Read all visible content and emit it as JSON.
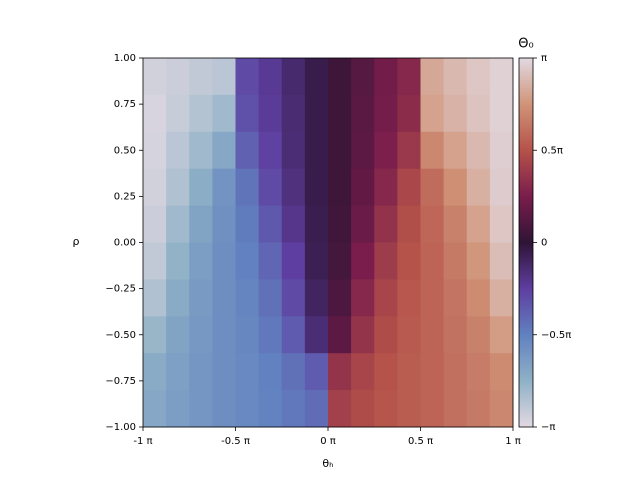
{
  "chart_data": {
    "type": "heatmap",
    "xlabel": "θₕ",
    "ylabel": "ρ",
    "colorbar_label": "Θ₀",
    "x": [
      -0.9375,
      -0.8125,
      -0.6875,
      -0.5625,
      -0.4375,
      -0.3125,
      -0.1875,
      -0.0625,
      0.0625,
      0.1875,
      0.3125,
      0.4375,
      0.5625,
      0.6875,
      0.8125,
      0.9375
    ],
    "y": [
      0.9,
      0.7,
      0.5,
      0.3,
      0.1,
      -0.1,
      -0.3,
      -0.5,
      -0.7,
      -0.9
    ],
    "z": [
      [
        -0.95,
        -0.93,
        -0.9,
        -0.88,
        -0.3,
        -0.22,
        -0.13,
        -0.05,
        0.05,
        0.13,
        0.22,
        0.3,
        0.82,
        0.88,
        0.93,
        0.97
      ],
      [
        -0.97,
        -0.92,
        -0.86,
        -0.8,
        -0.32,
        -0.23,
        -0.14,
        -0.05,
        0.05,
        0.14,
        0.23,
        0.32,
        0.8,
        0.86,
        0.92,
        0.97
      ],
      [
        -0.96,
        -0.88,
        -0.8,
        -0.7,
        -0.38,
        -0.26,
        -0.15,
        -0.05,
        0.05,
        0.15,
        0.26,
        0.38,
        0.7,
        0.8,
        0.88,
        0.96
      ],
      [
        -0.95,
        -0.85,
        -0.73,
        -0.6,
        -0.45,
        -0.3,
        -0.17,
        -0.05,
        0.05,
        0.17,
        0.3,
        0.45,
        0.6,
        0.73,
        0.85,
        0.95
      ],
      [
        -0.93,
        -0.8,
        -0.68,
        -0.58,
        -0.48,
        -0.35,
        -0.2,
        -0.06,
        0.06,
        0.2,
        0.35,
        0.48,
        0.58,
        0.68,
        0.8,
        0.93
      ],
      [
        -0.9,
        -0.76,
        -0.65,
        -0.57,
        -0.5,
        -0.4,
        -0.25,
        -0.07,
        0.07,
        0.25,
        0.4,
        0.5,
        0.57,
        0.65,
        0.76,
        0.9
      ],
      [
        -0.85,
        -0.72,
        -0.63,
        -0.57,
        -0.52,
        -0.44,
        -0.3,
        -0.1,
        0.1,
        0.3,
        0.44,
        0.52,
        0.57,
        0.63,
        0.72,
        0.85
      ],
      [
        -0.78,
        -0.68,
        -0.62,
        -0.57,
        -0.53,
        -0.47,
        -0.36,
        -0.15,
        0.15,
        0.36,
        0.47,
        0.53,
        0.57,
        0.62,
        0.68,
        0.78
      ],
      [
        -0.72,
        -0.66,
        -0.61,
        -0.57,
        -0.54,
        -0.5,
        -0.44,
        -0.36,
        0.36,
        0.44,
        0.5,
        0.54,
        0.57,
        0.61,
        0.66,
        0.72
      ],
      [
        -0.7,
        -0.65,
        -0.61,
        -0.57,
        -0.54,
        -0.51,
        -0.47,
        -0.42,
        0.42,
        0.47,
        0.51,
        0.54,
        0.57,
        0.61,
        0.65,
        0.7
      ]
    ],
    "xlim": [
      -1,
      1
    ],
    "ylim": [
      -1,
      1
    ],
    "clim": [
      -1,
      1
    ],
    "xticks": [
      {
        "value": -1,
        "label": "-1 π"
      },
      {
        "value": -0.5,
        "label": "-0.5 π"
      },
      {
        "value": 0,
        "label": "0 π"
      },
      {
        "value": 0.5,
        "label": "0.5 π"
      },
      {
        "value": 1,
        "label": "1 π"
      }
    ],
    "yticks": [
      {
        "value": -1,
        "label": "−1.00"
      },
      {
        "value": -0.75,
        "label": "−0.75"
      },
      {
        "value": -0.5,
        "label": "−0.50"
      },
      {
        "value": -0.25,
        "label": "−0.25"
      },
      {
        "value": 0,
        "label": "0.00"
      },
      {
        "value": 0.25,
        "label": "0.25"
      },
      {
        "value": 0.5,
        "label": "0.50"
      },
      {
        "value": 0.75,
        "label": "0.75"
      },
      {
        "value": 1,
        "label": "1.00"
      }
    ],
    "cticks": [
      {
        "value": -1,
        "label": "−π"
      },
      {
        "value": -0.5,
        "label": "−0.5π"
      },
      0,
      {
        "value": 0.5,
        "label": "0.5π"
      },
      {
        "value": 1,
        "label": "π"
      }
    ],
    "colormap": [
      "#e2d9e2",
      "#8fb1c6",
      "#6181c0",
      "#5e3ea0",
      "#2f1436",
      "#7a1d4c",
      "#b5524a",
      "#d09478",
      "#e2d9e2"
    ]
  }
}
